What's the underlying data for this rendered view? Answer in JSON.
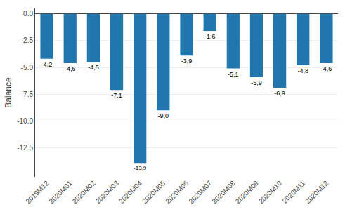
{
  "chart_data": {
    "type": "bar",
    "categories": [
      "2019M12",
      "2020M01",
      "2020M02",
      "2020M03",
      "2020M04",
      "2020M05",
      "2020M06",
      "2020M07",
      "2020M08",
      "2020M09",
      "2020M10",
      "2020M11",
      "2020M12"
    ],
    "values": [
      -4.2,
      -4.6,
      -4.5,
      -7.1,
      -13.9,
      -9.0,
      -3.9,
      -1.6,
      -5.1,
      -5.9,
      -6.9,
      -4.8,
      -4.6
    ],
    "value_labels": [
      "-4,2",
      "-4,6",
      "-4,5",
      "-7,1",
      "-13,9",
      "-9,0",
      "-3,9",
      "-1,6",
      "-5,1",
      "-5,9",
      "-6,9",
      "-4,8",
      "-4,6"
    ],
    "data_labels": true,
    "color": "#2176AE",
    "ylabel": "Balance",
    "ylim": [
      -15.2,
      0.5
    ],
    "yticks": [
      {
        "value": 0,
        "label": "0.0"
      },
      -2.5,
      {
        "value": -5,
        "label": "-5.0"
      },
      -7.5,
      {
        "value": -10,
        "label": "-10.0"
      },
      -12.5
    ],
    "grid": true
  }
}
